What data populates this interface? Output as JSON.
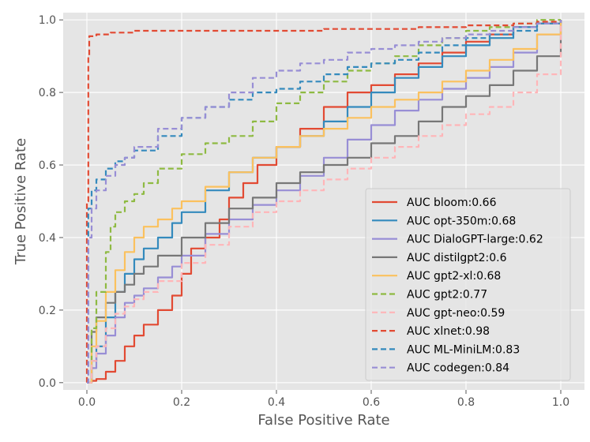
{
  "chart_data": {
    "type": "line",
    "title": "",
    "xlabel": "False Positive Rate",
    "ylabel": "True Positive Rate",
    "xlim": [
      -0.05,
      1.05
    ],
    "ylim": [
      -0.02,
      1.02
    ],
    "xticks": [
      0.0,
      0.2,
      0.4,
      0.6,
      0.8,
      1.0
    ],
    "yticks": [
      0.0,
      0.2,
      0.4,
      0.6,
      0.8,
      1.0
    ],
    "xtick_labels": [
      "0.0",
      "0.2",
      "0.4",
      "0.6",
      "0.8",
      "1.0"
    ],
    "ytick_labels": [
      "0.0",
      "0.2",
      "0.4",
      "0.6",
      "0.8",
      "1.0"
    ],
    "grid": true,
    "legend_position": "bottom-right",
    "series": [
      {
        "name": "AUC bloom:0.66",
        "color": "#e24a33",
        "dash": "solid",
        "x": [
          0,
          0.01,
          0.02,
          0.04,
          0.06,
          0.08,
          0.1,
          0.12,
          0.15,
          0.18,
          0.2,
          0.22,
          0.25,
          0.28,
          0.3,
          0.33,
          0.36,
          0.4,
          0.45,
          0.5,
          0.55,
          0.6,
          0.65,
          0.7,
          0.75,
          0.8,
          0.85,
          0.9,
          0.95,
          1.0
        ],
        "y": [
          0,
          0.005,
          0.01,
          0.03,
          0.06,
          0.1,
          0.13,
          0.16,
          0.2,
          0.24,
          0.3,
          0.37,
          0.4,
          0.45,
          0.51,
          0.55,
          0.6,
          0.65,
          0.7,
          0.76,
          0.8,
          0.82,
          0.85,
          0.88,
          0.91,
          0.94,
          0.96,
          0.98,
          0.99,
          1.0
        ]
      },
      {
        "name": "AUC opt-350m:0.68",
        "color": "#348abd",
        "dash": "solid",
        "x": [
          0,
          0.01,
          0.02,
          0.04,
          0.06,
          0.08,
          0.1,
          0.12,
          0.15,
          0.18,
          0.2,
          0.25,
          0.3,
          0.35,
          0.4,
          0.45,
          0.5,
          0.55,
          0.6,
          0.65,
          0.7,
          0.75,
          0.8,
          0.85,
          0.9,
          0.95,
          1.0
        ],
        "y": [
          0,
          0.06,
          0.1,
          0.18,
          0.25,
          0.3,
          0.34,
          0.37,
          0.4,
          0.44,
          0.47,
          0.53,
          0.58,
          0.62,
          0.65,
          0.68,
          0.72,
          0.76,
          0.8,
          0.84,
          0.87,
          0.9,
          0.93,
          0.95,
          0.98,
          0.99,
          1.0
        ]
      },
      {
        "name": "AUC DialoGPT-large:0.62",
        "color": "#988ed5",
        "dash": "solid",
        "x": [
          0,
          0.01,
          0.02,
          0.04,
          0.06,
          0.08,
          0.1,
          0.12,
          0.15,
          0.18,
          0.2,
          0.25,
          0.3,
          0.35,
          0.4,
          0.45,
          0.5,
          0.55,
          0.6,
          0.65,
          0.7,
          0.75,
          0.8,
          0.85,
          0.9,
          0.95,
          1.0
        ],
        "y": [
          0,
          0.04,
          0.08,
          0.13,
          0.18,
          0.22,
          0.24,
          0.26,
          0.29,
          0.32,
          0.35,
          0.41,
          0.45,
          0.49,
          0.53,
          0.57,
          0.62,
          0.67,
          0.71,
          0.75,
          0.78,
          0.81,
          0.84,
          0.87,
          0.91,
          0.96,
          1.0
        ]
      },
      {
        "name": "AUC distilgpt2:0.6",
        "color": "#777777",
        "dash": "solid",
        "x": [
          0,
          0.01,
          0.02,
          0.04,
          0.06,
          0.08,
          0.1,
          0.12,
          0.15,
          0.2,
          0.25,
          0.3,
          0.35,
          0.4,
          0.45,
          0.5,
          0.55,
          0.6,
          0.65,
          0.7,
          0.75,
          0.8,
          0.85,
          0.9,
          0.95,
          1.0
        ],
        "y": [
          0,
          0.14,
          0.18,
          0.22,
          0.25,
          0.27,
          0.3,
          0.32,
          0.35,
          0.4,
          0.44,
          0.48,
          0.51,
          0.55,
          0.58,
          0.6,
          0.62,
          0.66,
          0.68,
          0.72,
          0.76,
          0.79,
          0.82,
          0.86,
          0.9,
          1.0
        ]
      },
      {
        "name": "AUC gpt2-xl:0.68",
        "color": "#fbc15e",
        "dash": "solid",
        "x": [
          0,
          0.01,
          0.02,
          0.04,
          0.06,
          0.08,
          0.1,
          0.12,
          0.15,
          0.18,
          0.2,
          0.25,
          0.3,
          0.35,
          0.4,
          0.45,
          0.5,
          0.55,
          0.6,
          0.65,
          0.7,
          0.75,
          0.8,
          0.85,
          0.9,
          0.95,
          1.0
        ],
        "y": [
          0,
          0.1,
          0.17,
          0.25,
          0.31,
          0.36,
          0.4,
          0.43,
          0.45,
          0.48,
          0.5,
          0.54,
          0.58,
          0.62,
          0.65,
          0.68,
          0.7,
          0.73,
          0.76,
          0.78,
          0.8,
          0.83,
          0.86,
          0.89,
          0.92,
          0.96,
          1.0
        ]
      },
      {
        "name": "AUC gpt2:0.77",
        "color": "#8eba42",
        "dash": "dashed",
        "x": [
          0,
          0.01,
          0.02,
          0.04,
          0.05,
          0.06,
          0.08,
          0.1,
          0.12,
          0.15,
          0.2,
          0.25,
          0.3,
          0.35,
          0.4,
          0.45,
          0.5,
          0.55,
          0.6,
          0.65,
          0.7,
          0.75,
          0.8,
          0.85,
          0.9,
          0.95,
          1.0
        ],
        "y": [
          0,
          0.15,
          0.25,
          0.36,
          0.43,
          0.47,
          0.5,
          0.52,
          0.55,
          0.59,
          0.63,
          0.66,
          0.68,
          0.72,
          0.77,
          0.8,
          0.83,
          0.86,
          0.88,
          0.9,
          0.93,
          0.95,
          0.97,
          0.98,
          0.99,
          1.0,
          1.0
        ]
      },
      {
        "name": "AUC gpt-neo:0.59",
        "color": "#ffb5b8",
        "dash": "dashed",
        "x": [
          0,
          0.01,
          0.02,
          0.04,
          0.06,
          0.08,
          0.1,
          0.12,
          0.15,
          0.2,
          0.25,
          0.3,
          0.35,
          0.4,
          0.45,
          0.5,
          0.55,
          0.6,
          0.65,
          0.7,
          0.75,
          0.8,
          0.85,
          0.9,
          0.95,
          1.0
        ],
        "y": [
          0,
          0.06,
          0.1,
          0.15,
          0.19,
          0.21,
          0.23,
          0.25,
          0.28,
          0.33,
          0.38,
          0.43,
          0.47,
          0.5,
          0.53,
          0.56,
          0.59,
          0.62,
          0.65,
          0.68,
          0.71,
          0.74,
          0.76,
          0.8,
          0.85,
          1.0
        ]
      },
      {
        "name": "AUC xlnet:0.98",
        "color": "#e24a33",
        "dash": "dashed",
        "x": [
          0,
          0.0,
          0.003,
          0.005,
          0.02,
          0.05,
          0.1,
          0.2,
          0.3,
          0.4,
          0.5,
          0.6,
          0.7,
          0.8,
          0.9,
          0.95,
          1.0
        ],
        "y": [
          0,
          0.5,
          0.9,
          0.955,
          0.96,
          0.965,
          0.97,
          0.97,
          0.97,
          0.97,
          0.975,
          0.975,
          0.98,
          0.985,
          0.99,
          0.995,
          1.0
        ]
      },
      {
        "name": "AUC ML-MiniLM:0.83",
        "color": "#348abd",
        "dash": "dashed",
        "x": [
          0,
          0.003,
          0.01,
          0.02,
          0.04,
          0.06,
          0.08,
          0.1,
          0.15,
          0.2,
          0.25,
          0.3,
          0.35,
          0.4,
          0.45,
          0.5,
          0.55,
          0.6,
          0.65,
          0.7,
          0.75,
          0.8,
          0.85,
          0.9,
          0.95,
          1.0
        ],
        "y": [
          0,
          0.48,
          0.53,
          0.56,
          0.59,
          0.61,
          0.62,
          0.64,
          0.68,
          0.73,
          0.76,
          0.78,
          0.8,
          0.81,
          0.83,
          0.85,
          0.87,
          0.88,
          0.89,
          0.91,
          0.93,
          0.95,
          0.96,
          0.97,
          0.99,
          1.0
        ]
      },
      {
        "name": "AUC codegen:0.84",
        "color": "#988ed5",
        "dash": "dashed",
        "x": [
          0,
          0.003,
          0.01,
          0.02,
          0.04,
          0.06,
          0.08,
          0.1,
          0.15,
          0.2,
          0.25,
          0.3,
          0.35,
          0.4,
          0.45,
          0.5,
          0.55,
          0.6,
          0.65,
          0.7,
          0.75,
          0.8,
          0.85,
          0.9,
          0.95,
          1.0
        ],
        "y": [
          0,
          0.4,
          0.48,
          0.53,
          0.57,
          0.6,
          0.62,
          0.65,
          0.7,
          0.73,
          0.76,
          0.8,
          0.84,
          0.86,
          0.88,
          0.89,
          0.91,
          0.92,
          0.93,
          0.94,
          0.95,
          0.96,
          0.97,
          0.98,
          0.99,
          1.0
        ]
      }
    ]
  }
}
